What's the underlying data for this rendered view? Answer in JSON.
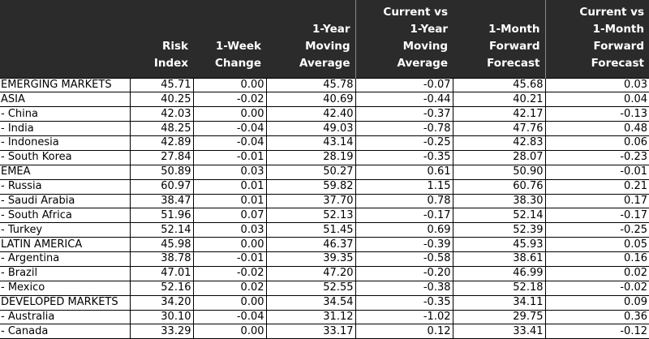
{
  "table": {
    "header": [
      [],
      [
        "Risk",
        "Index"
      ],
      [
        "1-Week",
        "Change"
      ],
      [
        "1-Year",
        "Moving",
        "Average"
      ],
      [
        "Current vs",
        "1-Year",
        "Moving",
        "Average"
      ],
      [
        "1-Month",
        "Forward",
        "Forecast"
      ],
      [
        "Current vs",
        "1-Month",
        "Forward",
        "Forecast"
      ]
    ],
    "rows": [
      [
        "EMERGING MARKETS",
        "45.71",
        "0.00",
        "45.78",
        "-0.07",
        "45.68",
        "0.03"
      ],
      [
        "ASIA",
        "40.25",
        "-0.02",
        "40.69",
        "-0.44",
        "40.21",
        "0.04"
      ],
      [
        "- China",
        "42.03",
        "0.00",
        "42.40",
        "-0.37",
        "42.17",
        "-0.13"
      ],
      [
        "- India",
        "48.25",
        "-0.04",
        "49.03",
        "-0.78",
        "47.76",
        "0.48"
      ],
      [
        "- Indonesia",
        "42.89",
        "-0.04",
        "43.14",
        "-0.25",
        "42.83",
        "0.06"
      ],
      [
        "- South Korea",
        "27.84",
        "-0.01",
        "28.19",
        "-0.35",
        "28.07",
        "-0.23"
      ],
      [
        "EMEA",
        "50.89",
        "0.03",
        "50.27",
        "0.61",
        "50.90",
        "-0.01"
      ],
      [
        "- Russia",
        "60.97",
        "0.01",
        "59.82",
        "1.15",
        "60.76",
        "0.21"
      ],
      [
        "- Saudi Arabia",
        "38.47",
        "0.01",
        "37.70",
        "0.78",
        "38.30",
        "0.17"
      ],
      [
        "- South Africa",
        "51.96",
        "0.07",
        "52.13",
        "-0.17",
        "52.14",
        "-0.17"
      ],
      [
        "- Turkey",
        "52.14",
        "0.03",
        "51.45",
        "0.69",
        "52.39",
        "-0.25"
      ],
      [
        "LATIN AMERICA",
        "45.98",
        "0.00",
        "46.37",
        "-0.39",
        "45.93",
        "0.05"
      ],
      [
        "- Argentina",
        "38.78",
        "-0.01",
        "39.35",
        "-0.58",
        "38.61",
        "0.16"
      ],
      [
        "- Brazil",
        "47.01",
        "-0.02",
        "47.20",
        "-0.20",
        "46.99",
        "0.02"
      ],
      [
        "- Mexico",
        "52.16",
        "0.02",
        "52.55",
        "-0.38",
        "52.18",
        "-0.02"
      ],
      [
        "DEVELOPED MARKETS",
        "34.20",
        "0.00",
        "34.54",
        "-0.35",
        "34.11",
        "0.09"
      ],
      [
        "- Australia",
        "30.10",
        "-0.04",
        "31.12",
        "-1.02",
        "29.75",
        "0.36"
      ],
      [
        "- Canada",
        "33.29",
        "0.00",
        "33.17",
        "0.12",
        "33.41",
        "-0.12"
      ]
    ]
  }
}
